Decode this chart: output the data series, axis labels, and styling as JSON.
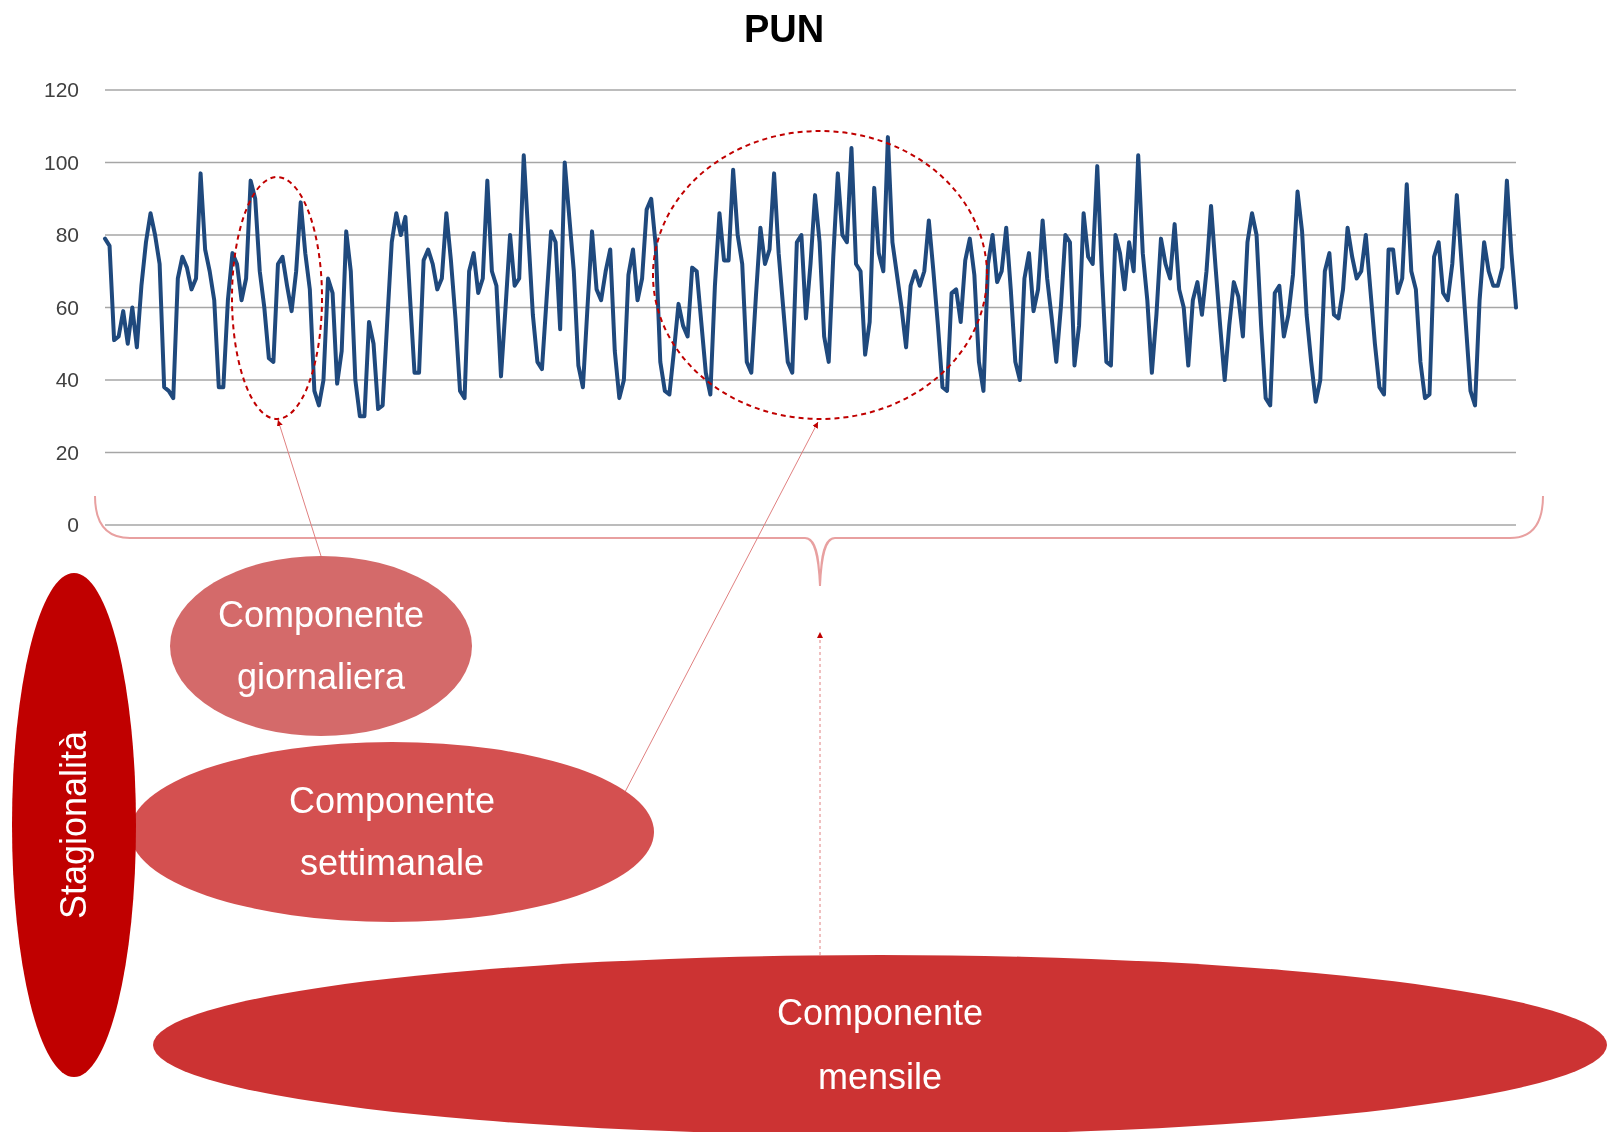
{
  "chart_data": {
    "type": "line",
    "title": "PUN",
    "categories": [
      null,
      null,
      null,
      null,
      null,
      null,
      null,
      null,
      null,
      null,
      null,
      null,
      null,
      null,
      null,
      null,
      null,
      null,
      null,
      null,
      null,
      null,
      null,
      null,
      null,
      null,
      null,
      null,
      null,
      null,
      null,
      null,
      null,
      null,
      null,
      null,
      null,
      null,
      null,
      null,
      null,
      null,
      null,
      null,
      null,
      null,
      null,
      null,
      null,
      null,
      null,
      null,
      null,
      null,
      null,
      null,
      null,
      null,
      null,
      null,
      null,
      null,
      null,
      null,
      null,
      null,
      null,
      null,
      null,
      null,
      null,
      null,
      null,
      null,
      null,
      null,
      null,
      null,
      null,
      null,
      null,
      null,
      null,
      null,
      null,
      null,
      null,
      null,
      null,
      null,
      null,
      null,
      null,
      null,
      null,
      null,
      null,
      null,
      null,
      null,
      null,
      null,
      null,
      null,
      null,
      null,
      null,
      null,
      null,
      null,
      null,
      null,
      null,
      null,
      null,
      null,
      null,
      null,
      null,
      null,
      null,
      null,
      null,
      null,
      null,
      null,
      null,
      null,
      null,
      null,
      null,
      null,
      null,
      null,
      null,
      null,
      null,
      null,
      null,
      null,
      null,
      null,
      null,
      null,
      null,
      null,
      null,
      null,
      null,
      null,
      null,
      null,
      null,
      null,
      null,
      null,
      null,
      null,
      null,
      null,
      null,
      null,
      null,
      null,
      null,
      null,
      null,
      null,
      null,
      null,
      null,
      null,
      null,
      null,
      null,
      null,
      null,
      null,
      null,
      null,
      null,
      null,
      null,
      null,
      null,
      null,
      null,
      null,
      null,
      null,
      null,
      null,
      null,
      null,
      null,
      null,
      null,
      null,
      null,
      null,
      null,
      null,
      null,
      null,
      null,
      null,
      null,
      null,
      null,
      null,
      null,
      null,
      null,
      null,
      null,
      null,
      null,
      null,
      null,
      null,
      null,
      null,
      null,
      null,
      null,
      null,
      null,
      null,
      null,
      null,
      null,
      null,
      null,
      null,
      null,
      null,
      null,
      null,
      null,
      null,
      null,
      null,
      null,
      null,
      null,
      null,
      null,
      null,
      null,
      null,
      null,
      null,
      null,
      null,
      null,
      null,
      null,
      null,
      null,
      null,
      null,
      null,
      null,
      null,
      null,
      null,
      null,
      null,
      null,
      null,
      null,
      null,
      null,
      null,
      null,
      null,
      null,
      null,
      null,
      null,
      null,
      null,
      null,
      null,
      null,
      null,
      null,
      null,
      null,
      null,
      null,
      null,
      null,
      null,
      null,
      null,
      null,
      null,
      null,
      null,
      null,
      null,
      null,
      null,
      null,
      null,
      null,
      null,
      null,
      null,
      null
    ],
    "series": [
      {
        "color": "#1f497d",
        "values": [
          79,
          77,
          51,
          52,
          59,
          50,
          60,
          49,
          66,
          78,
          86,
          80,
          72,
          38,
          37,
          35,
          68,
          74,
          71,
          65,
          68,
          97,
          76,
          70,
          62,
          38,
          38,
          62,
          75,
          72,
          62,
          68,
          95,
          90,
          70,
          60,
          46,
          45,
          72,
          74,
          66,
          59,
          70,
          89,
          75,
          65,
          37,
          33,
          40,
          68,
          64,
          39,
          48,
          81,
          70,
          40,
          30,
          30,
          56,
          50,
          32,
          33,
          56,
          78,
          86,
          80,
          85,
          63,
          42,
          42,
          73,
          76,
          72,
          65,
          68,
          86,
          73,
          57,
          37,
          35,
          70,
          75,
          64,
          68,
          95,
          70,
          66,
          41,
          60,
          80,
          66,
          68,
          102,
          80,
          58,
          45,
          43,
          62,
          81,
          78,
          54,
          100,
          85,
          70,
          44,
          38,
          60,
          81,
          65,
          62,
          70,
          76,
          48,
          35,
          40,
          69,
          76,
          62,
          68,
          87,
          90,
          77,
          45,
          37,
          36,
          48,
          61,
          55,
          52,
          71,
          70,
          56,
          42,
          36,
          66,
          86,
          73,
          73,
          98,
          80,
          72,
          45,
          42,
          63,
          82,
          72,
          76,
          97,
          75,
          60,
          45,
          42,
          78,
          80,
          57,
          72,
          91,
          78,
          52,
          45,
          74,
          97,
          80,
          78,
          104,
          72,
          70,
          47,
          56,
          93,
          75,
          70,
          107,
          78,
          69,
          60,
          49,
          66,
          70,
          66,
          70,
          84,
          70,
          55,
          38,
          37,
          64,
          65,
          56,
          73,
          79,
          69,
          45,
          37,
          72,
          80,
          67,
          70,
          82,
          65,
          45,
          40,
          68,
          75,
          59,
          65,
          84,
          68,
          57,
          45,
          60,
          80,
          78,
          44,
          55,
          86,
          74,
          72,
          99,
          70,
          45,
          44,
          80,
          75,
          65,
          78,
          70,
          102,
          75,
          62,
          42,
          58,
          79,
          72,
          68,
          83,
          65,
          60,
          44,
          62,
          67,
          58,
          70,
          88,
          71,
          55,
          40,
          55,
          67,
          63,
          52,
          78,
          86,
          80,
          55,
          35,
          33,
          64,
          66,
          52,
          58,
          69,
          92,
          81,
          58,
          45,
          34,
          40,
          70,
          75,
          58,
          57,
          65,
          82,
          74,
          68,
          70,
          80,
          65,
          50,
          38,
          36,
          76,
          76,
          64,
          68,
          94,
          70,
          65,
          45,
          35,
          36,
          74,
          78,
          64,
          62,
          72,
          91,
          73,
          55,
          37,
          33,
          62,
          78,
          70,
          66,
          66,
          71,
          95,
          75,
          60
        ]
      }
    ],
    "ylim": [
      0,
      120
    ],
    "yticks": [
      0,
      20,
      40,
      60,
      80,
      100,
      120
    ],
    "grid": "y",
    "tick_labels": "y",
    "annotations": [
      "Componente giornaliera",
      "Componente settimanale",
      "Componente mensile",
      "Stagionalità"
    ]
  }
}
